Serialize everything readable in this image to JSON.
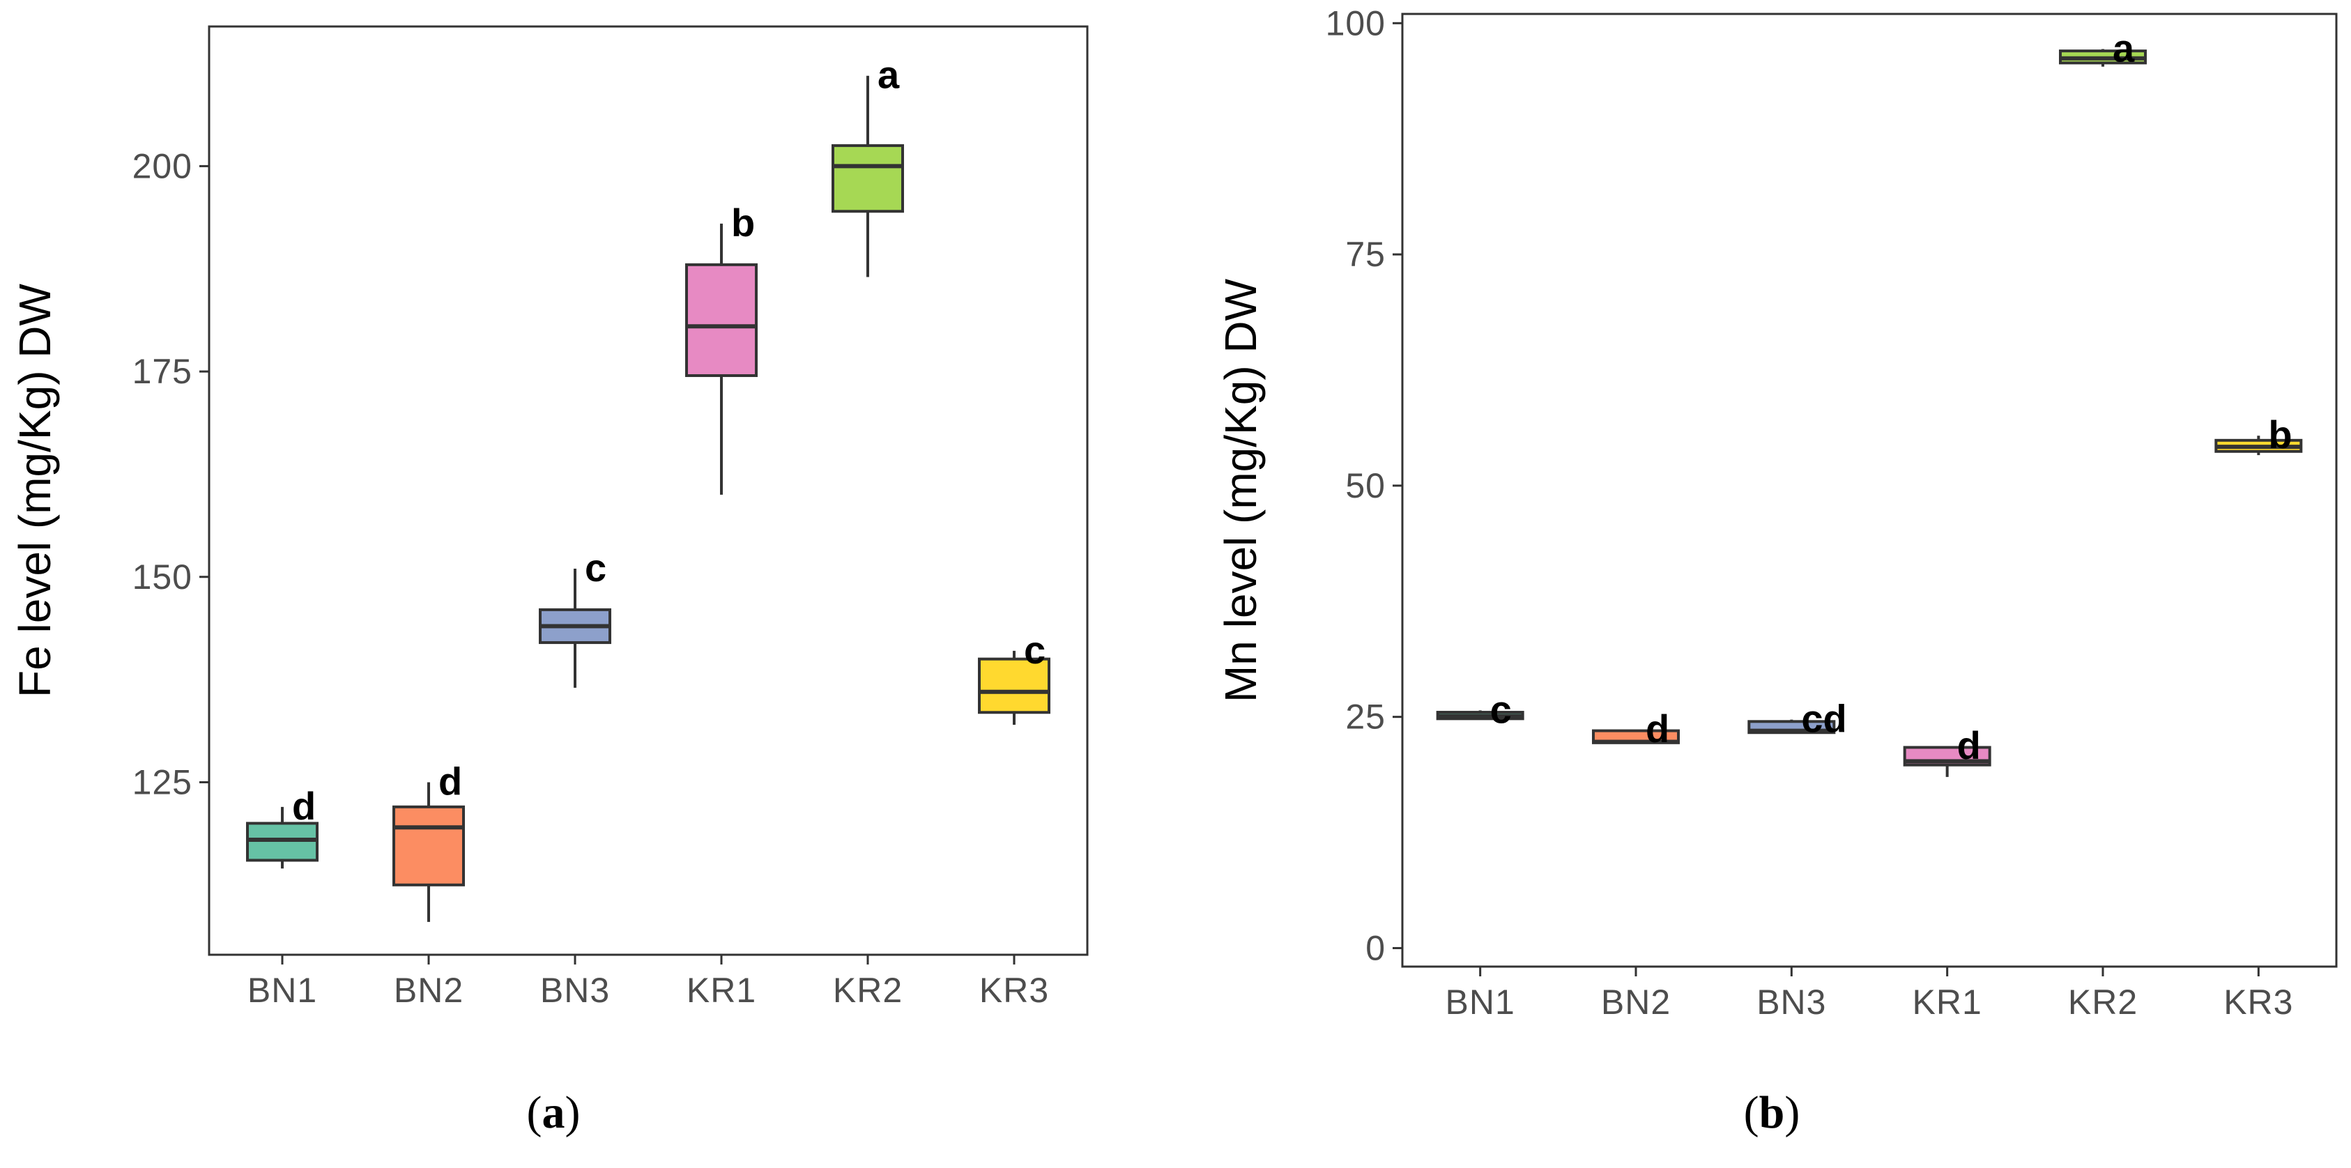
{
  "chart_data": [
    {
      "type": "boxplot",
      "panel_label": "a",
      "ylabel": "Fe level (mg/Kg) DW",
      "xlabel": "",
      "ylim": [
        104,
        217
      ],
      "yticks": [
        125,
        150,
        175,
        200
      ],
      "grid": false,
      "categories": [
        "BN1",
        "BN2",
        "BN3",
        "KR1",
        "KR2",
        "KR3"
      ],
      "colors": [
        "#66c2a5",
        "#fc8d62",
        "#8da0cb",
        "#e78ac3",
        "#a6d854",
        "#ffd92f"
      ],
      "boxes": [
        {
          "category": "BN1",
          "min": 114.5,
          "q1": 115.5,
          "median": 118,
          "q3": 120,
          "max": 122,
          "letter": "d"
        },
        {
          "category": "BN2",
          "min": 108,
          "q1": 112.5,
          "median": 119.5,
          "q3": 122,
          "max": 125,
          "letter": "d"
        },
        {
          "category": "BN3",
          "min": 136.5,
          "q1": 142,
          "median": 144,
          "q3": 146,
          "max": 151,
          "letter": "c"
        },
        {
          "category": "KR1",
          "min": 160,
          "q1": 174.5,
          "median": 180.5,
          "q3": 188,
          "max": 193,
          "letter": "b"
        },
        {
          "category": "KR2",
          "min": 186.5,
          "q1": 194.5,
          "median": 200,
          "q3": 202.5,
          "max": 211,
          "letter": "a"
        },
        {
          "category": "KR3",
          "min": 132,
          "q1": 133.5,
          "median": 136,
          "q3": 140,
          "max": 141,
          "letter": "c"
        }
      ]
    },
    {
      "type": "boxplot",
      "panel_label": "b",
      "ylabel": "Mn level (mg/Kg) DW",
      "xlabel": "",
      "ylim": [
        -2,
        101
      ],
      "yticks": [
        0,
        25,
        50,
        75,
        100
      ],
      "grid": false,
      "categories": [
        "BN1",
        "BN2",
        "BN3",
        "KR1",
        "KR2",
        "KR3"
      ],
      "colors": [
        "#66c2a5",
        "#fc8d62",
        "#8da0cb",
        "#e78ac3",
        "#a6d854",
        "#ffd92f"
      ],
      "boxes": [
        {
          "category": "BN1",
          "min": 24.8,
          "q1": 24.8,
          "median": 25.1,
          "q3": 25.5,
          "max": 25.7,
          "letter": "c"
        },
        {
          "category": "BN2",
          "min": 22.2,
          "q1": 22.2,
          "median": 22.3,
          "q3": 23.5,
          "max": 23.6,
          "letter": "d"
        },
        {
          "category": "BN3",
          "min": 23.3,
          "q1": 23.3,
          "median": 23.5,
          "q3": 24.5,
          "max": 24.7,
          "letter": "cd"
        },
        {
          "category": "KR1",
          "min": 18.5,
          "q1": 19.8,
          "median": 20.2,
          "q3": 21.7,
          "max": 21.8,
          "letter": "d"
        },
        {
          "category": "KR2",
          "min": 95.3,
          "q1": 95.7,
          "median": 96.2,
          "q3": 97,
          "max": 97.2,
          "letter": "a"
        },
        {
          "category": "KR3",
          "min": 53.3,
          "q1": 53.7,
          "median": 54.2,
          "q3": 54.9,
          "max": 55.4,
          "letter": "b"
        }
      ]
    }
  ],
  "captions": [
    {
      "open": "(",
      "letter": "a",
      "close": ")"
    },
    {
      "open": "(",
      "letter": "b",
      "close": ")"
    }
  ]
}
